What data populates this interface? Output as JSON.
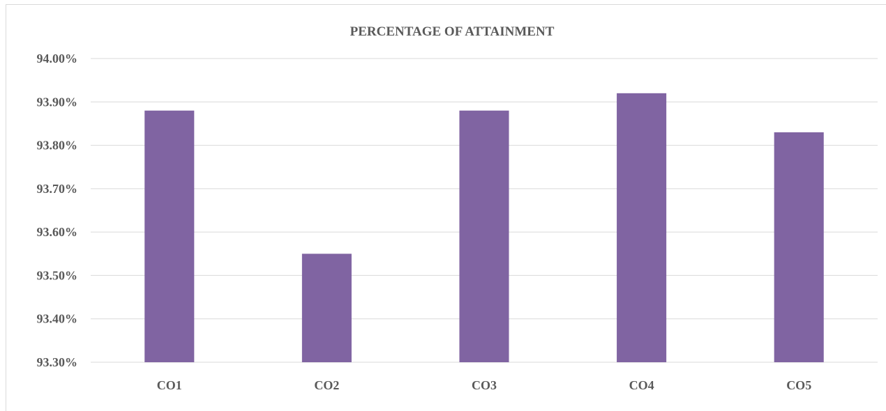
{
  "chart_data": {
    "type": "bar",
    "title": "PERCENTAGE OF ATTAINMENT",
    "xlabel": "",
    "ylabel": "",
    "categories": [
      "CO1",
      "CO2",
      "CO3",
      "CO4",
      "CO5"
    ],
    "values": [
      93.88,
      93.55,
      93.88,
      93.92,
      93.83
    ],
    "ylim": [
      93.3,
      94.0
    ],
    "y_ticks": [
      "93.30%",
      "93.40%",
      "93.50%",
      "93.60%",
      "93.70%",
      "93.80%",
      "93.90%",
      "94.00%"
    ],
    "y_tick_values": [
      93.3,
      93.4,
      93.5,
      93.6,
      93.7,
      93.8,
      93.9,
      94.0
    ],
    "grid": true,
    "legend": "none",
    "colors": {
      "bar": "#8064A2",
      "grid": "#d9d9d9",
      "text": "#595959"
    }
  }
}
